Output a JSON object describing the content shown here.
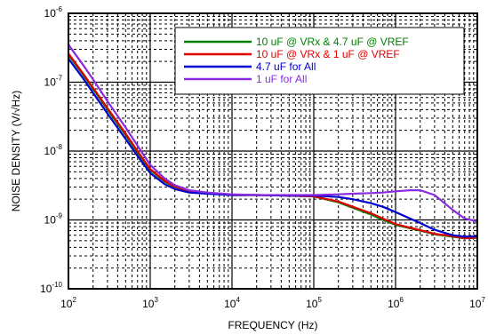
{
  "chart_data": {
    "type": "line",
    "xlabel": "FREQUENCY (Hz)",
    "ylabel": "NOISE DENSITY (V/√Hz)",
    "xscale": "log",
    "yscale": "log",
    "xlim": [
      100,
      10000000
    ],
    "ylim": [
      1e-10,
      1e-06
    ],
    "grid": true,
    "legend_position": "top-right",
    "x_ticks": [
      {
        "value": 100,
        "base": "10",
        "exp": "2"
      },
      {
        "value": 1000,
        "base": "10",
        "exp": "3"
      },
      {
        "value": 10000,
        "base": "10",
        "exp": "4"
      },
      {
        "value": 100000,
        "base": "10",
        "exp": "5"
      },
      {
        "value": 1000000,
        "base": "10",
        "exp": "6"
      },
      {
        "value": 10000000,
        "base": "10",
        "exp": "7"
      }
    ],
    "y_ticks": [
      {
        "value": 1e-10,
        "base": "10",
        "exp": "-10"
      },
      {
        "value": 1e-09,
        "base": "10",
        "exp": "-9"
      },
      {
        "value": 1e-08,
        "base": "10",
        "exp": "-8"
      },
      {
        "value": 1e-07,
        "base": "10",
        "exp": "-7"
      },
      {
        "value": 1e-06,
        "base": "10",
        "exp": "-6"
      }
    ],
    "series": [
      {
        "name": "10 uF @ VRx & 4.7 uF @ VREF",
        "color": "#008000",
        "x": [
          100,
          150,
          200,
          300,
          500,
          700,
          1000,
          1500,
          2000,
          3000,
          5000,
          10000,
          20000,
          50000,
          100000,
          200000,
          300000,
          500000,
          700000,
          1000000,
          2000000,
          3000000,
          5000000,
          7000000,
          10000000
        ],
        "y": [
          2.5e-07,
          1.3e-07,
          8e-08,
          4e-08,
          1.7e-08,
          9.5e-09,
          5.3e-09,
          3.6e-09,
          3e-09,
          2.6e-09,
          2.45e-09,
          2.3e-09,
          2.3e-09,
          2.25e-09,
          2.2e-09,
          1.8e-09,
          1.5e-09,
          1.2e-09,
          1e-09,
          8.5e-10,
          7e-10,
          6.2e-10,
          5.7e-10,
          5.4e-10,
          5.5e-10
        ]
      },
      {
        "name": "10 uF @ VRx & 1 uF @ VREF",
        "color": "#e00000",
        "x": [
          100,
          150,
          200,
          300,
          500,
          700,
          1000,
          1500,
          2000,
          3000,
          5000,
          10000,
          20000,
          50000,
          100000,
          200000,
          300000,
          500000,
          700000,
          1000000,
          2000000,
          3000000,
          5000000,
          7000000,
          10000000
        ],
        "y": [
          2.6e-07,
          1.35e-07,
          8.3e-08,
          4.2e-08,
          1.8e-08,
          1e-08,
          5.5e-09,
          3.7e-09,
          3.05e-09,
          2.65e-09,
          2.45e-09,
          2.3e-09,
          2.3e-09,
          2.25e-09,
          2.2e-09,
          1.85e-09,
          1.55e-09,
          1.25e-09,
          1.05e-09,
          8.7e-10,
          7.1e-10,
          6.3e-10,
          5.8e-10,
          5.4e-10,
          5.6e-10
        ]
      },
      {
        "name": "4.7 uF for All",
        "color": "#0000d0",
        "x": [
          100,
          150,
          200,
          300,
          500,
          700,
          1000,
          1500,
          2000,
          3000,
          5000,
          10000,
          20000,
          50000,
          100000,
          200000,
          300000,
          500000,
          700000,
          1000000,
          2000000,
          3000000,
          5000000,
          7000000,
          10000000
        ],
        "y": [
          2.2e-07,
          1.15e-07,
          7e-08,
          3.5e-08,
          1.5e-08,
          8.5e-09,
          4.8e-09,
          3.3e-09,
          2.8e-09,
          2.5e-09,
          2.4e-09,
          2.3e-09,
          2.3e-09,
          2.25e-09,
          2.25e-09,
          2.15e-09,
          2e-09,
          1.75e-09,
          1.55e-09,
          1.3e-09,
          9e-10,
          7.2e-10,
          6e-10,
          5.7e-10,
          5.8e-10
        ]
      },
      {
        "name": "1 uF for All",
        "color": "#8a2be2",
        "x": [
          100,
          150,
          200,
          300,
          500,
          700,
          1000,
          1500,
          2000,
          3000,
          5000,
          10000,
          20000,
          50000,
          100000,
          200000,
          300000,
          500000,
          700000,
          1000000,
          1500000,
          2000000,
          3000000,
          5000000,
          7000000,
          10000000
        ],
        "y": [
          3.5e-07,
          1.8e-07,
          1.1e-07,
          5.3e-08,
          2.2e-08,
          1.2e-08,
          6.3e-09,
          4e-09,
          3.2e-09,
          2.7e-09,
          2.5e-09,
          2.35e-09,
          2.3e-09,
          2.3e-09,
          2.3e-09,
          2.35e-09,
          2.4e-09,
          2.45e-09,
          2.5e-09,
          2.6e-09,
          2.7e-09,
          2.7e-09,
          2.3e-09,
          1.4e-09,
          1.05e-09,
          9.5e-10
        ]
      }
    ]
  }
}
